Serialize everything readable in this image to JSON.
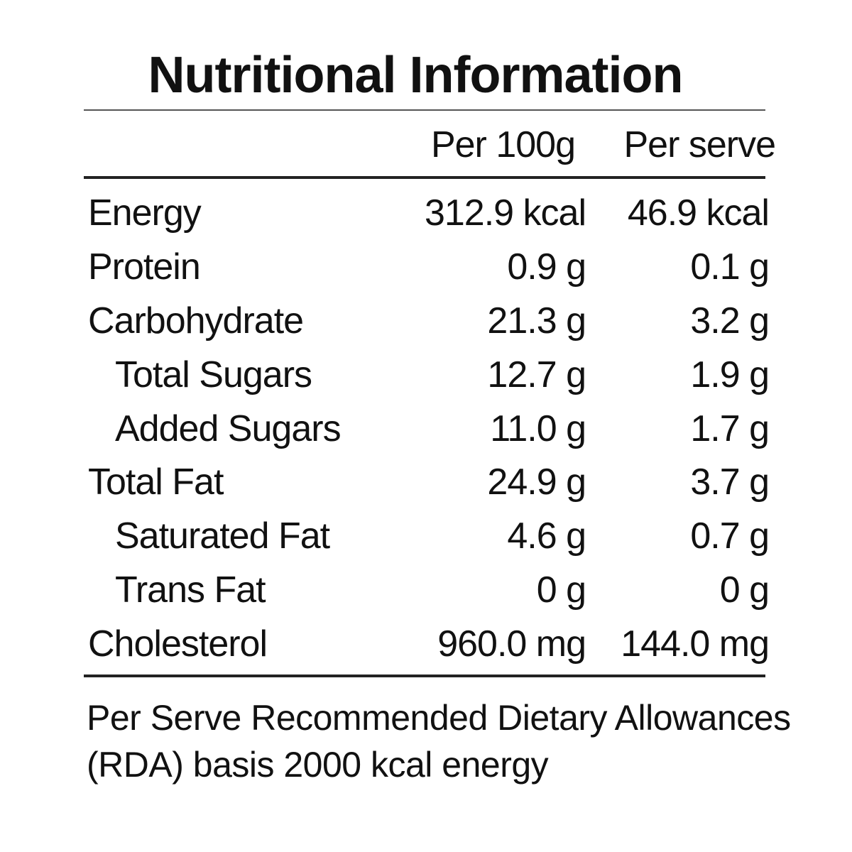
{
  "title": "Nutritional Information",
  "columns": {
    "per_100g": "Per 100g",
    "per_serve": "Per serve"
  },
  "rows": [
    {
      "name": "Energy",
      "per_100g": "312.9 kcal",
      "per_serve": "46.9 kcal",
      "indent": false
    },
    {
      "name": "Protein",
      "per_100g": "0.9 g",
      "per_serve": "0.1 g",
      "indent": false
    },
    {
      "name": "Carbohydrate",
      "per_100g": "21.3 g",
      "per_serve": "3.2 g",
      "indent": false
    },
    {
      "name": "Total Sugars",
      "per_100g": "12.7 g",
      "per_serve": "1.9 g",
      "indent": true
    },
    {
      "name": "Added Sugars",
      "per_100g": "11.0 g",
      "per_serve": "1.7 g",
      "indent": true
    },
    {
      "name": "Total Fat",
      "per_100g": "24.9 g",
      "per_serve": "3.7 g",
      "indent": false
    },
    {
      "name": "Saturated Fat",
      "per_100g": "4.6 g",
      "per_serve": "0.7 g",
      "indent": true
    },
    {
      "name": "Trans Fat",
      "per_100g": "0 g",
      "per_serve": "0 g",
      "indent": true
    },
    {
      "name": "Cholesterol",
      "per_100g": "960.0 mg",
      "per_serve": "144.0 mg",
      "indent": false
    }
  ],
  "footnote": "Per Serve Recommended Dietary Allowances (RDA) basis 2000 kcal energy"
}
